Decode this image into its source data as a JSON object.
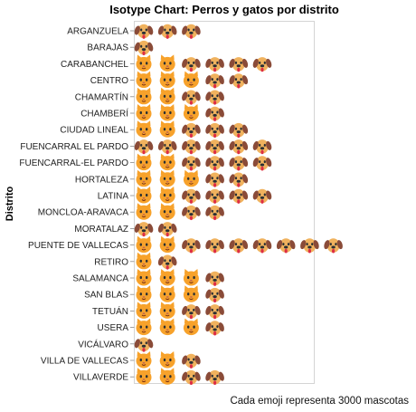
{
  "chart_data": {
    "type": "isotype",
    "title": "Isotype Chart: Perros y gatos por distrito",
    "ylabel": "Distrito",
    "xlabel": "",
    "footnote": "Cada emoji representa 3000 mascotas",
    "unit_per_icon": 3000,
    "series": [
      {
        "name": "cats",
        "icon": "cat-icon",
        "color": "#f7a22b"
      },
      {
        "name": "dogs",
        "icon": "dog-icon",
        "color": "#f0b25e"
      }
    ],
    "categories": [
      "ARGANZUELA",
      "BARAJAS",
      "CARABANCHEL",
      "CENTRO",
      "CHAMARTÍN",
      "CHAMBERÍ",
      "CIUDAD LINEAL",
      "FUENCARRAL EL PARDO",
      "FUENCARRAL-EL PARDO",
      "HORTALEZA",
      "LATINA",
      "MONCLOA-ARAVACA",
      "MORATALAZ",
      "PUENTE DE VALLECAS",
      "RETIRO",
      "SALAMANCA",
      "SAN BLAS",
      "TETUÁN",
      "USERA",
      "VICÁLVARO",
      "VILLA DE VALLECAS",
      "VILLAVERDE"
    ],
    "rows": [
      [
        "dog",
        "dog",
        "dog"
      ],
      [
        "dog"
      ],
      [
        "cat",
        "cat",
        "dog",
        "dog",
        "dog",
        "dog"
      ],
      [
        "cat",
        "cat",
        "cat",
        "dog",
        "dog"
      ],
      [
        "cat",
        "cat",
        "dog",
        "dog"
      ],
      [
        "cat",
        "cat",
        "cat",
        "dog"
      ],
      [
        "cat",
        "cat",
        "dog",
        "dog",
        "dog"
      ],
      [
        "dog",
        "dog",
        "dog",
        "dog",
        "dog",
        "dog"
      ],
      [
        "cat",
        "cat",
        "dog",
        "dog",
        "dog",
        "dog"
      ],
      [
        "cat",
        "cat",
        "cat",
        "dog",
        "dog"
      ],
      [
        "cat",
        "cat",
        "dog",
        "dog",
        "dog",
        "dog"
      ],
      [
        "cat",
        "cat",
        "dog",
        "dog"
      ],
      [
        "dog",
        "dog"
      ],
      [
        "cat",
        "cat",
        "dog",
        "dog",
        "dog",
        "dog",
        "dog",
        "dog",
        "dog"
      ],
      [
        "cat",
        "dog"
      ],
      [
        "cat",
        "cat",
        "cat",
        "dog"
      ],
      [
        "cat",
        "cat",
        "cat",
        "dog"
      ],
      [
        "cat",
        "cat",
        "dog",
        "dog"
      ],
      [
        "cat",
        "cat",
        "cat",
        "dog"
      ],
      [
        "dog"
      ],
      [
        "cat",
        "cat",
        "dog"
      ],
      [
        "cat",
        "cat",
        "dog",
        "dog"
      ]
    ]
  }
}
